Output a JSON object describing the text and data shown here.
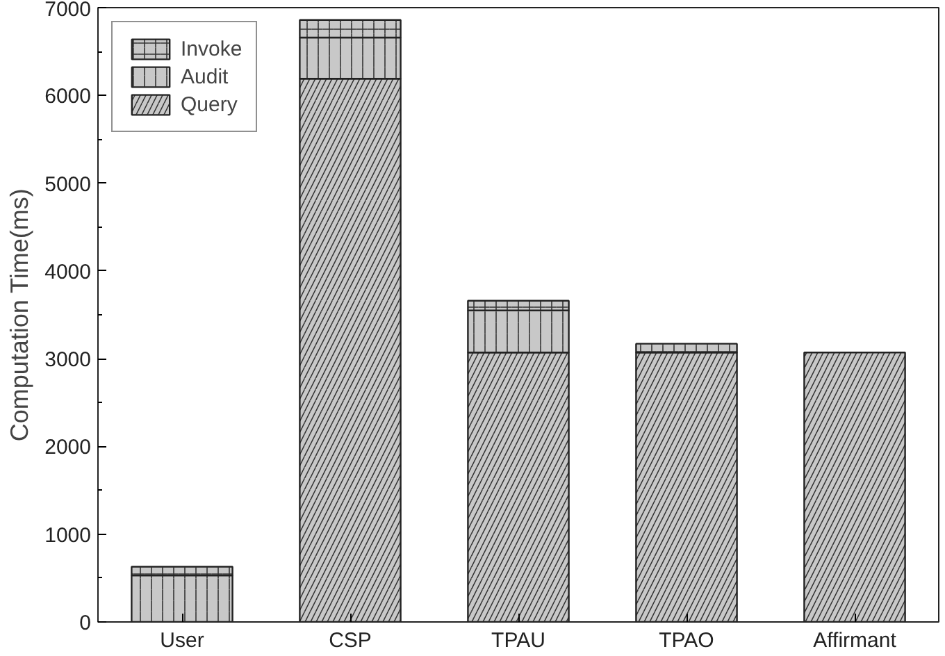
{
  "chart_data": {
    "type": "bar",
    "stacked": true,
    "ylabel": "Computation Time(ms)",
    "categories": [
      "User",
      "CSP",
      "TPAU",
      "TPAO",
      "Affirmant"
    ],
    "series": [
      {
        "name": "Query",
        "color": "#c8c8c8",
        "values": [
          0,
          6190,
          3070,
          3070,
          3070
        ]
      },
      {
        "name": "Audit",
        "color": "#c8c8c8",
        "values": [
          530,
          470,
          480,
          0,
          0
        ]
      },
      {
        "name": "Invoke",
        "color": "#c8c8c8",
        "values": [
          100,
          200,
          110,
          100,
          0
        ]
      }
    ],
    "ylim": [
      0,
      7000
    ],
    "yticks": [
      0,
      1000,
      2000,
      3000,
      4000,
      5000,
      6000,
      7000
    ],
    "grid": false,
    "legend": "top left"
  }
}
